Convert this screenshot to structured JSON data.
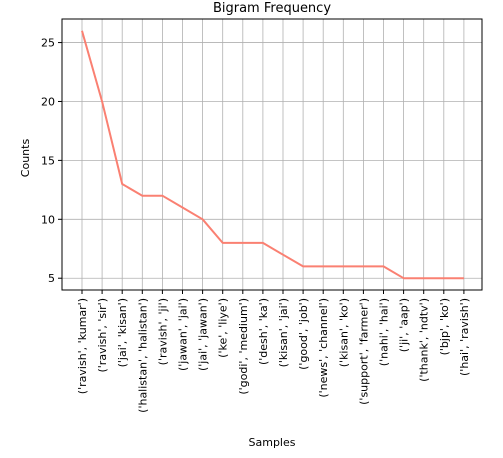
{
  "chart_data": {
    "type": "line",
    "title": "Bigram Frequency",
    "xlabel": "Samples",
    "ylabel": "Counts",
    "categories": [
      "('ravish', 'kumar')",
      "('ravish', 'sir')",
      "('jai', 'kisan')",
      "('halistan', 'halistan')",
      "('ravish', 'ji')",
      "('jawan', 'jai')",
      "('jai', 'jawan')",
      "('ke', 'liye')",
      "('godi', 'medium')",
      "('desh', 'ka')",
      "('kisan', 'jai')",
      "('good', 'job')",
      "('news', 'channel')",
      "('kisan', 'ko')",
      "('support', 'farmer')",
      "('nahi', 'hai')",
      "('ji', 'aap')",
      "('thank', 'ndtv')",
      "('bjp', 'ko')",
      "('hai', 'ravish')"
    ],
    "values": [
      26,
      20,
      13,
      12,
      12,
      11,
      10,
      8,
      8,
      8,
      7,
      6,
      6,
      6,
      6,
      6,
      5,
      5,
      5,
      5
    ],
    "yticks": [
      5,
      10,
      15,
      20,
      25
    ],
    "ylim": [
      4,
      27
    ],
    "grid": true,
    "line_color": "#fa8072"
  }
}
